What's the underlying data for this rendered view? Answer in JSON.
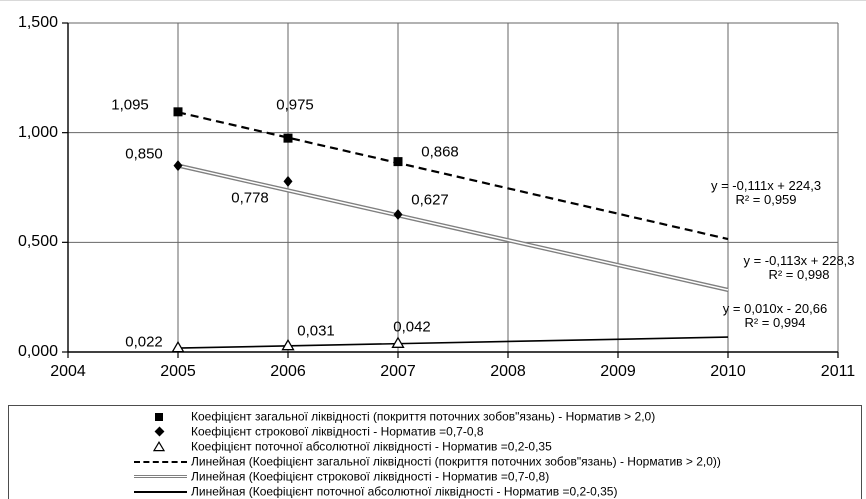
{
  "chart_data": {
    "type": "scatter",
    "title": "",
    "grid": true,
    "legend_position": "bottom",
    "x_axis": {
      "ticks": [
        "2004",
        "2005",
        "2006",
        "2007",
        "2008",
        "2009",
        "2010",
        "2011"
      ],
      "range": [
        2004,
        2011
      ]
    },
    "y_axis": {
      "ticks": [
        "0,000",
        "0,500",
        "1,000",
        "1,500"
      ],
      "values": [
        0,
        0.5,
        1.0,
        1.5
      ],
      "range": [
        0,
        1.5
      ]
    },
    "colors": {
      "marker": "#000000",
      "trend_gray": "#7f7f7f",
      "grid": "#666666",
      "axis": "#000000"
    },
    "series": [
      {
        "name": "Коефіцієнт загальної ліквідності (покриття поточних зобов\"язань) - Норматив > 2,0)",
        "marker": "square",
        "x": [
          2005,
          2006,
          2007
        ],
        "values": [
          1.095,
          0.975,
          0.868
        ],
        "point_labels": [
          "1,095",
          "0,975",
          "0,868"
        ],
        "trend": {
          "style": "dashed",
          "x": [
            2005,
            2010
          ],
          "y": [
            1.093,
            0.515
          ],
          "equation": "y = -0,111x + 224,3",
          "r2": "R² = 0,959"
        }
      },
      {
        "name": "Коефіцієнт строкової ліквідності - Норматив =0,7-0,8",
        "marker": "diamond",
        "x": [
          2005,
          2006,
          2007
        ],
        "values": [
          0.85,
          0.778,
          0.627
        ],
        "point_labels": [
          "0,850",
          "0,778",
          "0,627"
        ],
        "trend": {
          "style": "double-gray",
          "x": [
            2005,
            2010
          ],
          "y": [
            0.85,
            0.283
          ],
          "equation": "y = -0,113x + 228,3",
          "r2": "R² = 0,998"
        }
      },
      {
        "name": "Коефіцієнт поточної абсолютної ліквідності - Норматив =0,2-0,35",
        "marker": "triangle-open",
        "x": [
          2005,
          2006,
          2007
        ],
        "values": [
          0.022,
          0.031,
          0.042
        ],
        "point_labels": [
          "0,022",
          "0,031",
          "0,042"
        ],
        "trend": {
          "style": "solid",
          "x": [
            2005,
            2010
          ],
          "y": [
            0.018,
            0.068
          ],
          "equation": "y = 0,010x - 20,66",
          "r2": "R² = 0,994"
        }
      }
    ],
    "legend": [
      {
        "marker": "square",
        "label": "Коефіцієнт загальної ліквідності (покриття поточних зобов\"язань) - Норматив > 2,0)"
      },
      {
        "marker": "diamond",
        "label": "Коефіцієнт строкової ліквідності - Норматив =0,7-0,8"
      },
      {
        "marker": "triangle-open",
        "label": "Коефіцієнт поточної абсолютної ліквідності - Норматив =0,2-0,35"
      },
      {
        "marker": "dashed-line",
        "label": "Линейная (Коефіцієнт загальної ліквідності (покриття поточних зобов\"язань) - Норматив > 2,0))"
      },
      {
        "marker": "gray-line",
        "label": "Линейная (Коефіцієнт строкової ліквідності - Норматив =0,7-0,8)"
      },
      {
        "marker": "black-line",
        "label": "Линейная (Коефіцієнт поточної абсолютної ліквідності - Норматив =0,2-0,35)"
      }
    ]
  }
}
